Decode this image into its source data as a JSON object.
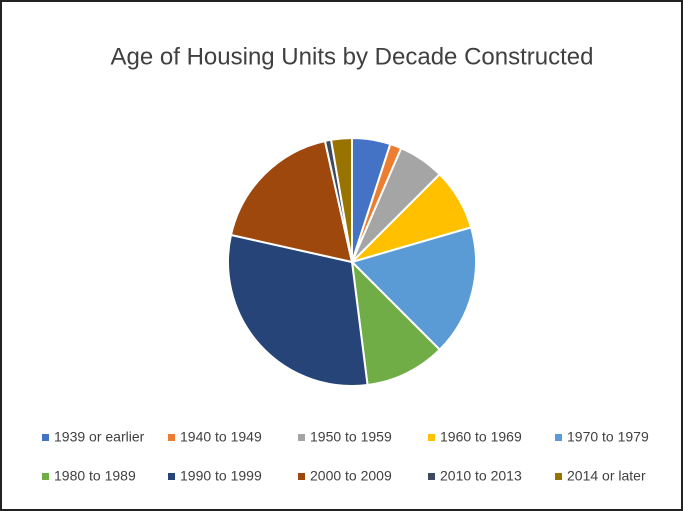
{
  "chart_data": {
    "type": "pie",
    "title": "Age of Housing Units by Decade Constructed",
    "categories": [
      "1939 or earlier",
      "1940 to 1949",
      "1950 to 1959",
      "1960 to 1969",
      "1970 to 1979",
      "1980 to 1989",
      "1990 to 1999",
      "2000 to 2009",
      "2010 to 2013",
      "2014 or later"
    ],
    "values": [
      5,
      1.5,
      6,
      8,
      17,
      10.5,
      30.5,
      18,
      0.8,
      2.7
    ],
    "colors": [
      "#4472c4",
      "#ed7d31",
      "#a5a5a5",
      "#ffc000",
      "#5b9bd5",
      "#70ad47",
      "#264478",
      "#9e480e",
      "#3b4a5e",
      "#997300"
    ],
    "legend": "bottom"
  }
}
